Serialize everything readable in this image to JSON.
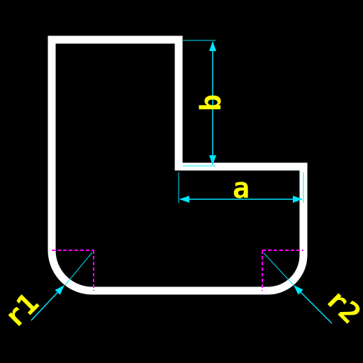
{
  "colors": {
    "background": "#000000",
    "outline": "#ffffff",
    "dimension": "#00e5ff",
    "label": "#ffff00",
    "center_mark": "#ff00ff"
  },
  "labels": {
    "a": "a",
    "b": "b",
    "r1": "r1",
    "r2": "r2"
  }
}
